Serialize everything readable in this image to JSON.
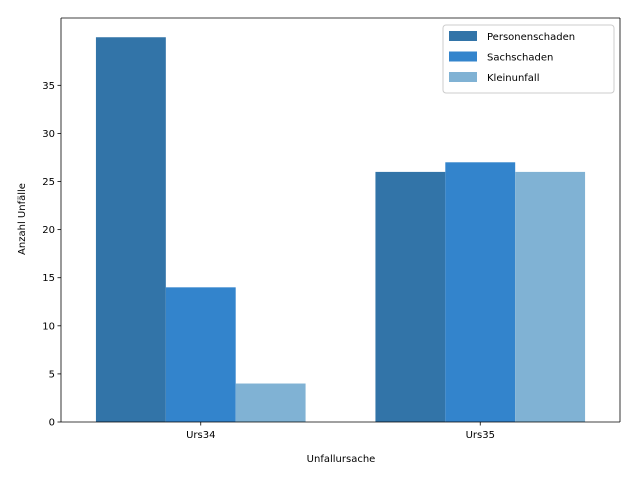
{
  "chart_data": {
    "type": "bar",
    "title": "",
    "xlabel": "Unfallursache",
    "ylabel": "Anzahl Unfälle",
    "categories": [
      "Urs34",
      "Urs35"
    ],
    "series": [
      {
        "name": "Personenschaden",
        "values": [
          40,
          26
        ],
        "color": "#3274a8"
      },
      {
        "name": "Sachschaden",
        "values": [
          14,
          27
        ],
        "color": "#3384cc"
      },
      {
        "name": "Kleinunfall",
        "values": [
          4,
          26
        ],
        "color": "#80b2d4"
      }
    ],
    "ylim": [
      0,
      42
    ],
    "yticks": [
      0,
      5,
      10,
      15,
      20,
      25,
      30,
      35
    ],
    "grid": false,
    "legend": "top-right"
  }
}
